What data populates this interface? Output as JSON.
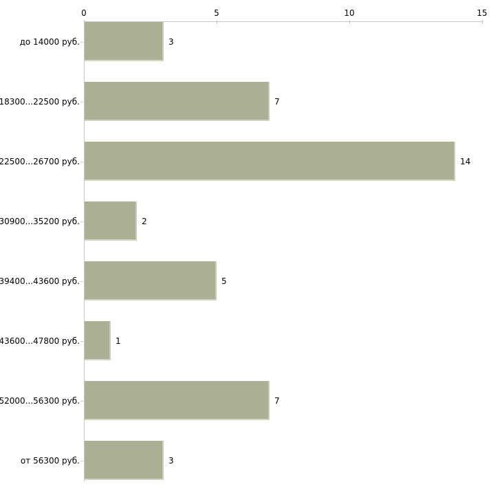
{
  "chart_data": {
    "type": "bar",
    "orientation": "horizontal",
    "title": "",
    "xlabel": "",
    "ylabel": "",
    "categories": [
      "до 14000 руб.",
      "18300...22500 руб.",
      "22500...26700 руб.",
      "30900...35200 руб.",
      "39400...43600 руб.",
      "43600...47800 руб.",
      "52000...56300 руб.",
      "от 56300 руб."
    ],
    "values": [
      3,
      7,
      14,
      2,
      5,
      1,
      7,
      3
    ],
    "value_labels": [
      "3",
      "7",
      "14",
      "2",
      "5",
      "1",
      "7",
      "3"
    ],
    "xlim": [
      0,
      15
    ],
    "x_ticks": [
      0,
      5,
      10,
      15
    ],
    "x_tick_labels": [
      "0",
      "5",
      "10",
      "15"
    ],
    "axis_position": "top",
    "grid": false,
    "legend": null,
    "colors": {
      "bar_fill": "#abb094",
      "bar_edge": "#c9cdbb",
      "axis_line": "#c9c9c3",
      "tick_mark": "#c5caaa",
      "text": "#000000",
      "background": "#ffffff"
    }
  }
}
